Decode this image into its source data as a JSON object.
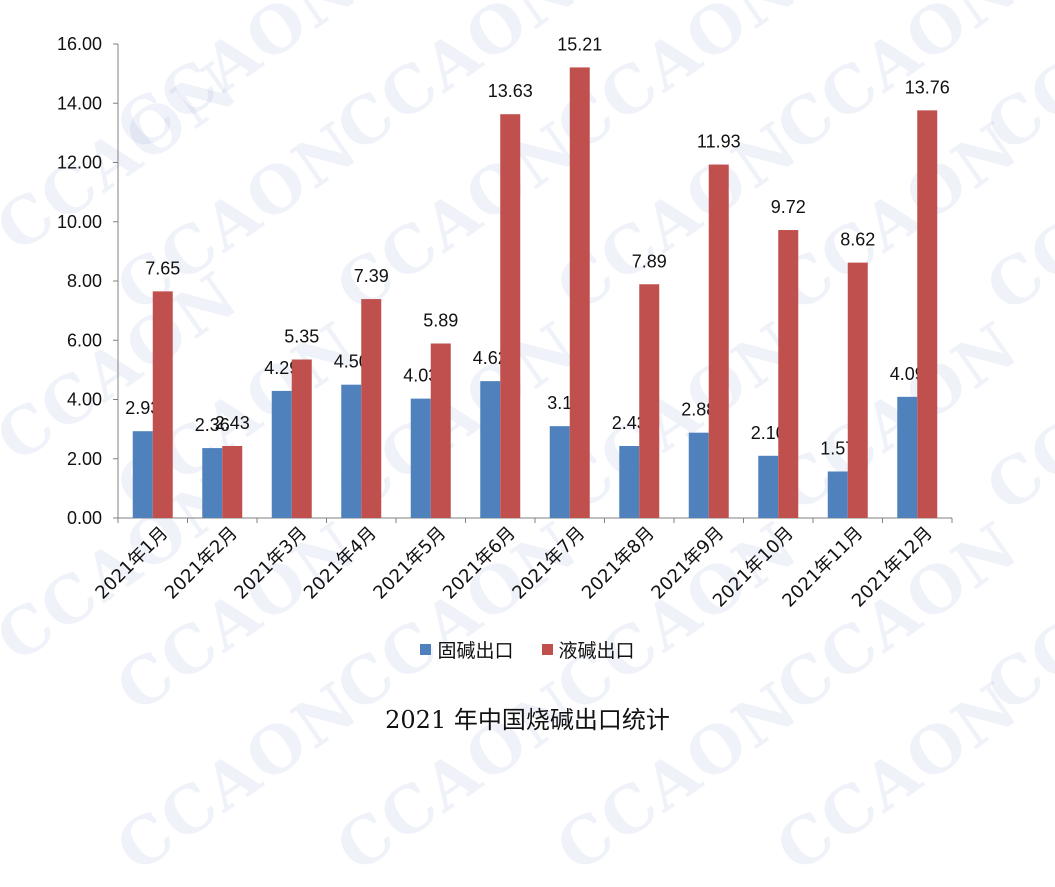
{
  "caption": "2021 年中国烧碱出口统计",
  "watermark_text": "CCAON",
  "chart_data": {
    "type": "bar",
    "title": "",
    "xlabel": "",
    "ylabel": "",
    "ylim": [
      0,
      16
    ],
    "yticks": [
      "0.00",
      "2.00",
      "4.00",
      "6.00",
      "8.00",
      "10.00",
      "12.00",
      "14.00",
      "16.00"
    ],
    "grid": false,
    "legend_position": "bottom",
    "categories": [
      "2021年1月",
      "2021年2月",
      "2021年3月",
      "2021年4月",
      "2021年5月",
      "2021年6月",
      "2021年7月",
      "2021年8月",
      "2021年9月",
      "2021年10月",
      "2021年11月",
      "2021年12月"
    ],
    "series": [
      {
        "name": "固碱出口",
        "color": "#4f81bd",
        "values": [
          2.93,
          2.36,
          4.29,
          4.5,
          4.03,
          4.62,
          3.1,
          2.43,
          2.88,
          2.1,
          1.57,
          4.09
        ],
        "labels": [
          "2.93",
          "2.36",
          "4.29",
          "4.50",
          "4.03",
          "4.62",
          "3.1",
          "2.43",
          "2.88",
          "2.10",
          "1.57",
          "4.09"
        ]
      },
      {
        "name": "液碱出口",
        "color": "#c0504d",
        "values": [
          7.65,
          2.43,
          5.35,
          7.39,
          5.89,
          13.63,
          15.21,
          7.89,
          11.93,
          9.72,
          8.62,
          13.76
        ],
        "labels": [
          "7.65",
          "2.43",
          "5.35",
          "7.39",
          "5.89",
          "13.63",
          "15.21",
          "7.89",
          "11.93",
          "9.72",
          "8.62",
          "13.76"
        ]
      }
    ]
  }
}
